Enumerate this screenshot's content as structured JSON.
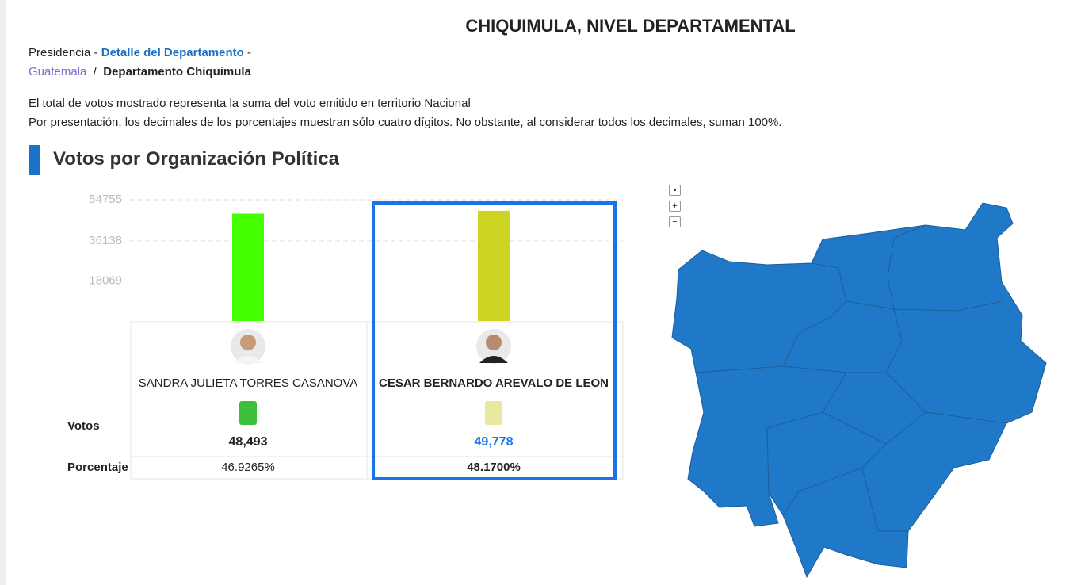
{
  "header": {
    "title": "CHIQUIMULA, NIVEL DEPARTAMENTAL"
  },
  "breadcrumb": {
    "first": "Presidencia",
    "separator": "-",
    "link": "Detalle del Departamento",
    "trail_sep": "-",
    "country": "Guatemala",
    "slash": "/",
    "current": "Departamento Chiquimula"
  },
  "notes": [
    "El total de votos mostrado representa la suma del voto emitido en territorio Nacional",
    "Por presentación, los decimales de los porcentajes muestran sólo cuatro dígitos. No obstante, al considerar todos los decimales, suman 100%."
  ],
  "section_title": "Votos por Organización Política",
  "chart_data": {
    "type": "bar",
    "categories": [
      "SANDRA JULIETA TORRES CASANOVA",
      "CESAR BERNARDO AREVALO DE LEON"
    ],
    "values": [
      48493,
      49778
    ],
    "value_labels": [
      "48,493",
      "49,778"
    ],
    "colors": [
      "#44ff00",
      "#cdd424"
    ],
    "ylim": [
      0,
      54755
    ],
    "yticks": [
      18069,
      36138,
      54755
    ],
    "grid": true,
    "selected": 1
  },
  "table": {
    "row_labels": [
      "Votos",
      "Porcentaje"
    ],
    "percentages": [
      "46.9265%",
      "48.1700%"
    ]
  },
  "map": {
    "controls": [
      "•",
      "+",
      "−"
    ]
  }
}
